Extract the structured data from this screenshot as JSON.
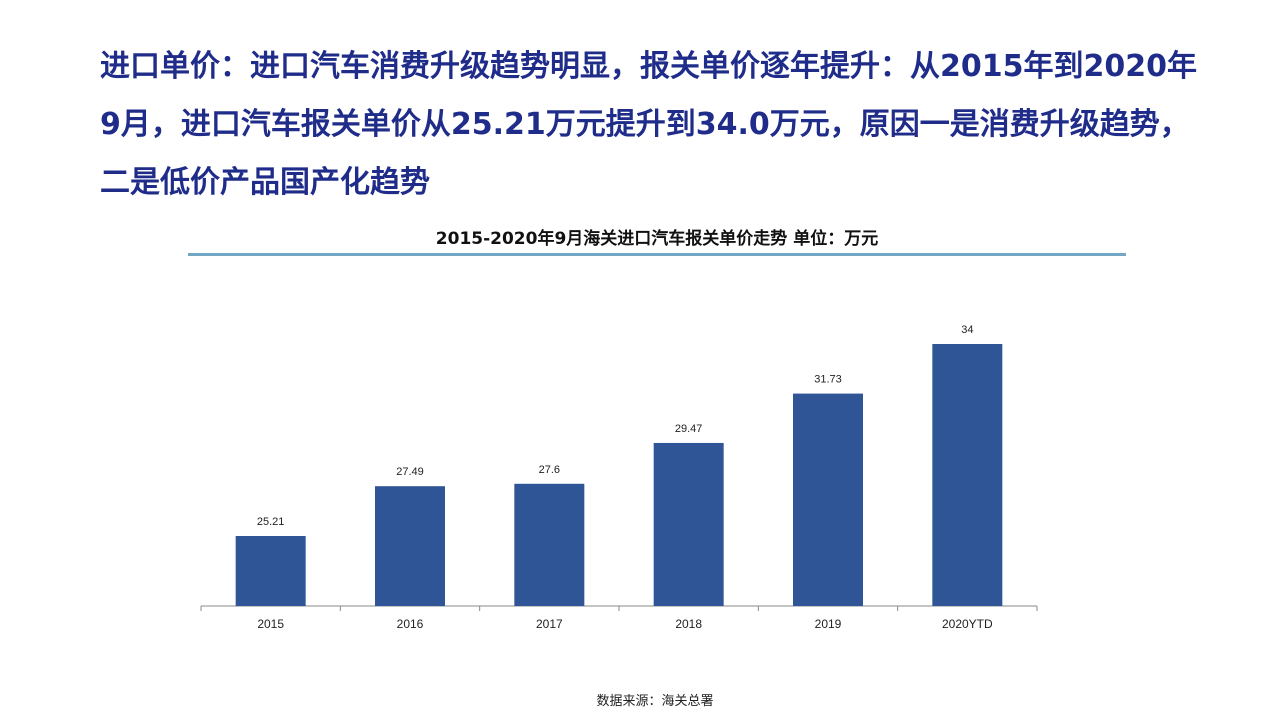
{
  "headline": "进口单价：进口汽车消费升级趋势明显，报关单价逐年提升：从2015年到2020年9月，进口汽车报关单价从25.21万元提升到34.0万元，原因一是消费升级趋势，二是低价产品国产化趋势",
  "source": "数据来源：海关总署",
  "chart_data": {
    "type": "bar",
    "title": "2015-2020年9月海关进口汽车报关单价走势  单位：万元",
    "categories": [
      "2015",
      "2016",
      "2017",
      "2018",
      "2019",
      "2020YTD"
    ],
    "values": [
      25.21,
      27.49,
      27.6,
      29.47,
      31.73,
      34
    ],
    "value_labels": [
      "25.21",
      "27.49",
      "27.6",
      "29.47",
      "31.73",
      "34"
    ],
    "bar_color": "#2f5597",
    "rule_color": "#73a6c2",
    "grid": false,
    "legend": "none"
  }
}
